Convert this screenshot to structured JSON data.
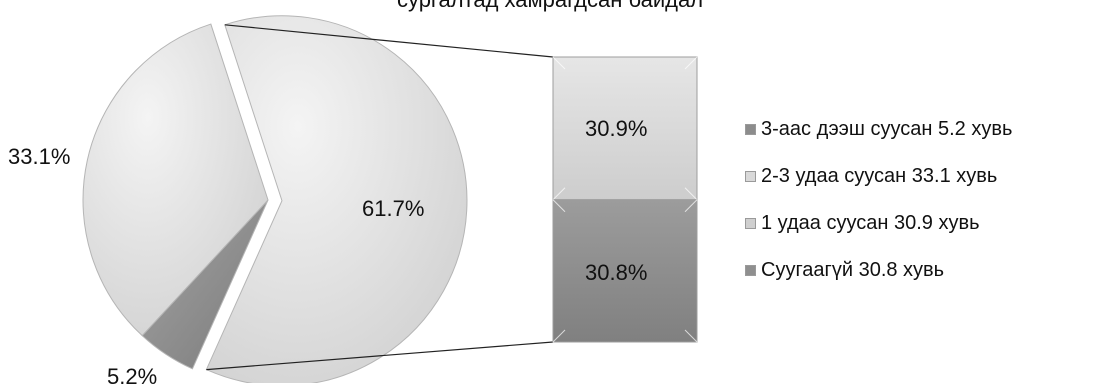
{
  "chart_data": {
    "type": "pie",
    "title": "сургалтад хамрагдсан байдал",
    "pie": {
      "slices": [
        {
          "label": "61.7%",
          "value": 61.7
        },
        {
          "label": "5.2%",
          "value": 5.2
        },
        {
          "label": "33.1%",
          "value": 33.1
        }
      ],
      "exploded_slice": "61.7%"
    },
    "bar_of_pie": {
      "segments": [
        {
          "label": "30.9%",
          "value": 30.9
        },
        {
          "label": "30.8%",
          "value": 30.8
        }
      ]
    },
    "legend": {
      "placement": "right",
      "entries": [
        {
          "text": "3-аас дээш суусан 5.2 хувь",
          "color": "#8c8c8c"
        },
        {
          "text": "2-3 удаа суусан 33.1 хувь",
          "color": "#d9d9d9"
        },
        {
          "text": "1 удаа суусан 30.9 хувь",
          "color": "#cfcfcf"
        },
        {
          "text": "Суугаагүй 30.8 хувь",
          "color": "#8f8f8f"
        }
      ]
    },
    "colors": {
      "light": "#dcdcdc",
      "light_edge": "#bdbdbd",
      "dark": "#8a8a8a",
      "bar_light": "#d6d6d6",
      "bar_dark": "#8e8e8e"
    }
  }
}
